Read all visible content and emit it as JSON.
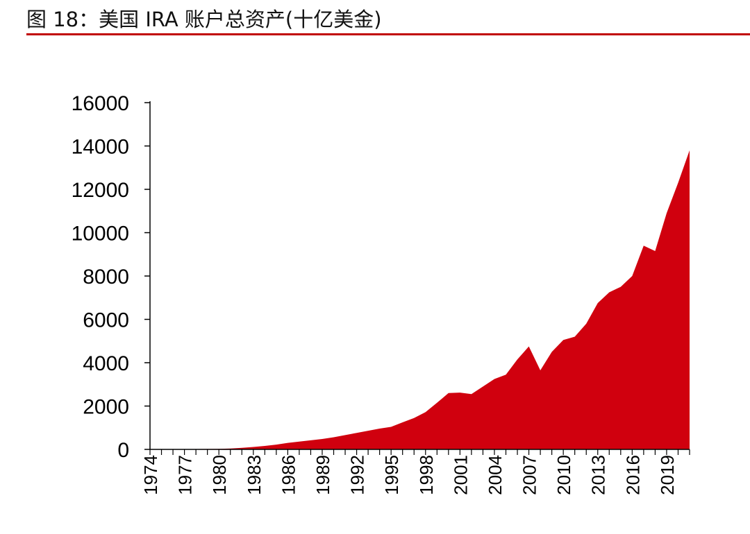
{
  "header": {
    "title": "图 18：美国 IRA 账户总资产(十亿美金)"
  },
  "colors": {
    "accent_rule": "#c00000",
    "area_fill": "#d0000e",
    "axis": "#000000"
  },
  "chart_data": {
    "type": "area",
    "title": "图 18：美国 IRA 账户总资产(十亿美金)",
    "xlabel": "",
    "ylabel": "",
    "ylim": [
      0,
      16000
    ],
    "y_ticks": [
      0,
      2000,
      4000,
      6000,
      8000,
      10000,
      12000,
      14000,
      16000
    ],
    "x_tick_labels": [
      "1974",
      "1977",
      "1980",
      "1983",
      "1986",
      "1989",
      "1992",
      "1995",
      "1998",
      "2001",
      "2004",
      "2007",
      "2010",
      "2013",
      "2016",
      "2019"
    ],
    "x": [
      1974,
      1975,
      1976,
      1977,
      1978,
      1979,
      1980,
      1981,
      1982,
      1983,
      1984,
      1985,
      1986,
      1987,
      1988,
      1989,
      1990,
      1991,
      1992,
      1993,
      1994,
      1995,
      1996,
      1997,
      1998,
      1999,
      2000,
      2001,
      2002,
      2003,
      2004,
      2005,
      2006,
      2007,
      2008,
      2009,
      2010,
      2011,
      2012,
      2013,
      2014,
      2015,
      2016,
      2017,
      2018,
      2019,
      2020,
      2021
    ],
    "values": [
      0,
      2,
      5,
      9,
      15,
      20,
      25,
      40,
      70,
      110,
      160,
      220,
      300,
      360,
      420,
      480,
      560,
      660,
      760,
      860,
      960,
      1040,
      1250,
      1450,
      1720,
      2150,
      2600,
      2620,
      2550,
      2900,
      3250,
      3450,
      4150,
      4750,
      3650,
      4500,
      5050,
      5200,
      5800,
      6750,
      7250,
      7500,
      8000,
      9400,
      9150,
      10900,
      12300,
      13800
    ],
    "grid": false,
    "legend": "none"
  }
}
